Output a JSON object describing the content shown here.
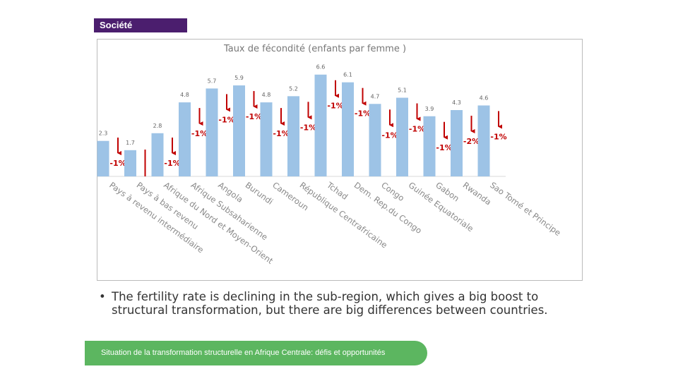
{
  "header": {
    "tag": "Société"
  },
  "chart_data": {
    "type": "bar",
    "title": "Taux de fécondité (enfants par femme )",
    "categories": [
      "Pays à revenu intermédiaire",
      "Pays à bas revenu",
      "Afrique du Nord et Moyen-Orient",
      "Afrique Subsaharienne",
      "Angola",
      "Burundi",
      "Cameroun",
      "République Centrafricaine",
      "Tchad",
      "Dem. Rep.du Congo",
      "Congo",
      "Guinée Equatoriale",
      "Gabon",
      "Rwanda",
      "Sao Tomé et Principe"
    ],
    "values": [
      2.3,
      1.7,
      2.8,
      4.8,
      5.7,
      5.9,
      4.8,
      5.2,
      6.6,
      6.1,
      4.7,
      5.1,
      3.9,
      4.3,
      4.6
    ],
    "color": "#9dc3e6",
    "ylim": [
      0,
      7
    ],
    "changes": {
      "color": "#c00000",
      "values": [
        -1,
        null,
        -1,
        -1,
        -1,
        -1,
        -1,
        -1,
        -1,
        -1,
        -1,
        -1,
        -1,
        -2,
        -1
      ],
      "value_labels": [
        "-1%",
        null,
        "-1%",
        "-1%",
        "-1%",
        "-1%",
        "-1%",
        "-1%",
        "-1%",
        "-1%",
        "-1%",
        "-1%",
        "-1%",
        "-2%",
        "-1%"
      ]
    }
  },
  "bullet": "The fertility rate is declining in the sub-region, which gives a big boost to structural transformation, but there are big differences between countries.",
  "footer": "Situation de la transformation structurelle en Afrique Centrale:  défis et opportunités"
}
